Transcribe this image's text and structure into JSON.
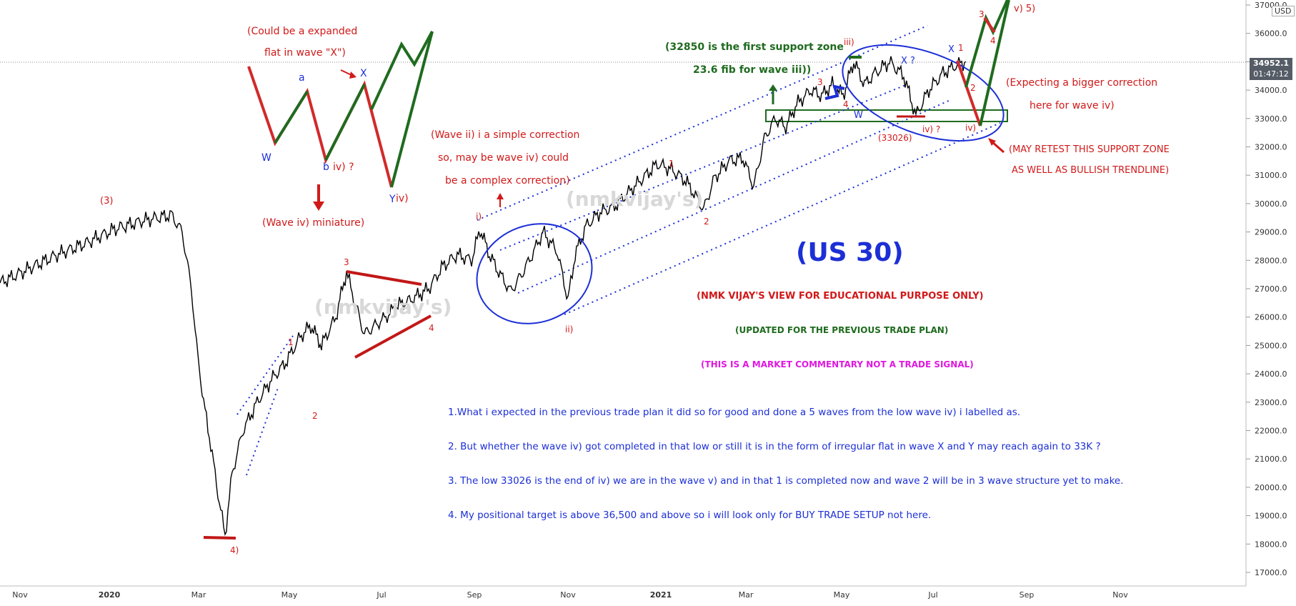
{
  "chart_data": {
    "type": "line",
    "title": "(US 30)",
    "currency": "USD",
    "last_price": "34952.1",
    "countdown": "01:47:12",
    "x_ticks": [
      "Nov",
      "2020",
      "Mar",
      "May",
      "Jul",
      "Sep",
      "Nov",
      "2021",
      "Mar",
      "May",
      "Jul",
      "Sep",
      "Nov"
    ],
    "y_ticks": [
      "37000.0",
      "36000.0",
      "35000.0",
      "34000.0",
      "33000.0",
      "32000.0",
      "31000.0",
      "30000.0",
      "29000.0",
      "28000.0",
      "27000.0",
      "26000.0",
      "25000.0",
      "24000.0",
      "23000.0",
      "22000.0",
      "21000.0",
      "20000.0",
      "19000.0",
      "18000.0",
      "17000.0"
    ],
    "ylim": [
      16500,
      37200
    ],
    "series": [
      {
        "values": [
          [
            0,
            27200
          ],
          [
            40,
            27700
          ],
          [
            80,
            28200
          ],
          [
            120,
            28600
          ],
          [
            160,
            29100
          ],
          [
            200,
            29400
          ],
          [
            220,
            29500
          ],
          [
            240,
            29600
          ],
          [
            255,
            29000
          ],
          [
            268,
            27000
          ],
          [
            275,
            25000
          ],
          [
            285,
            23000
          ],
          [
            295,
            21500
          ],
          [
            305,
            19800
          ],
          [
            315,
            18300
          ],
          [
            325,
            20500
          ],
          [
            340,
            22000
          ],
          [
            360,
            23000
          ],
          [
            380,
            23800
          ],
          [
            400,
            24400
          ],
          [
            420,
            25300
          ],
          [
            435,
            25700
          ],
          [
            450,
            25000
          ],
          [
            470,
            26000
          ],
          [
            485,
            27600
          ],
          [
            497,
            26500
          ],
          [
            510,
            25400
          ],
          [
            525,
            25700
          ],
          [
            540,
            26000
          ],
          [
            555,
            26400
          ],
          [
            575,
            26600
          ],
          [
            600,
            27000
          ],
          [
            620,
            27800
          ],
          [
            640,
            28200
          ],
          [
            660,
            28000
          ],
          [
            672,
            29100
          ],
          [
            685,
            28200
          ],
          [
            700,
            27500
          ],
          [
            715,
            26900
          ],
          [
            730,
            27500
          ],
          [
            745,
            28200
          ],
          [
            760,
            29000
          ],
          [
            780,
            28300
          ],
          [
            795,
            26600
          ],
          [
            805,
            28200
          ],
          [
            820,
            29200
          ],
          [
            840,
            29700
          ],
          [
            860,
            29900
          ],
          [
            880,
            30400
          ],
          [
            900,
            30900
          ],
          [
            920,
            31400
          ],
          [
            940,
            31200
          ],
          [
            960,
            30800
          ],
          [
            985,
            29800
          ],
          [
            1000,
            30900
          ],
          [
            1020,
            31500
          ],
          [
            1040,
            31600
          ],
          [
            1055,
            30600
          ],
          [
            1070,
            32300
          ],
          [
            1085,
            33000
          ],
          [
            1100,
            32700
          ],
          [
            1115,
            33500
          ],
          [
            1135,
            34000
          ],
          [
            1150,
            33800
          ],
          [
            1165,
            34200
          ],
          [
            1180,
            33800
          ],
          [
            1195,
            35000
          ],
          [
            1210,
            34200
          ],
          [
            1225,
            34600
          ],
          [
            1245,
            35000
          ],
          [
            1265,
            34500
          ],
          [
            1282,
            33100
          ],
          [
            1300,
            34000
          ],
          [
            1320,
            34600
          ],
          [
            1340,
            34900
          ],
          [
            1352,
            35000
          ]
        ]
      }
    ]
  },
  "annotations": {
    "flat_line1": "(Could be a expanded",
    "flat_line2": "flat in wave \"X\")",
    "wave_a": "a",
    "wave_x": "X",
    "wave_w": "W",
    "wave_b": "b",
    "wave_b_iv": "iv) ?",
    "wave_y": "Y",
    "wave_y_iv": "iv)",
    "miniature": "(Wave iv) miniature)",
    "wave_3_big": "(3)",
    "wave_ii_line1": "(Wave ii) i a simple correction",
    "wave_ii_line2": "so, may be wave iv) could",
    "wave_ii_line3": "be a complex correction)",
    "support_line1": "(32850 is the first support zone",
    "support_line2": "23.6 fib for wave iii))",
    "wave_iii": "iii)",
    "wave_x_q": "X ?",
    "wave_w2": "W",
    "wave_iv_q": "iv) ?",
    "low_33026": "(33026)",
    "wave_x_right": "X",
    "wave_1_right": "1",
    "wave_2_right": "2",
    "wave_3_right": "3",
    "wave_4_right": "4",
    "wave_v5": "v) 5)",
    "wave_iv_right": "iv)",
    "expect_line1": "(Expecting a bigger correction",
    "expect_line2": "here for wave iv)",
    "retest_line1": "(MAY RETEST THIS SUPPORT ZONE",
    "retest_line2": "AS WELL AS BULLISH TRENDLINE)",
    "us30": "(US 30)",
    "view": "(NMK VIJAY'S VIEW FOR EDUCATIONAL PURPOSE ONLY)",
    "updated": "(UPDATED FOR THE PREVIOUS TRADE PLAN)",
    "commentary": "(THIS IS A MARKET COMMENTARY NOT A TRADE SIGNAL)",
    "note1": "1.What i expected in the previous trade plan it did so for good and done a 5 waves from the low wave iv) i labelled as.",
    "note2": "2. But whether the wave iv) got completed in that low or still it is in the form of irregular flat in wave X and Y may reach again to 33K ?",
    "note3": "3. The low 33026 is the end of iv) we are in the wave v) and in that 1 is completed now and wave 2 will be in 3 wave structure yet to make.",
    "note4": "4. My positional target is above 36,500 and above so i will look only for BUY TRADE SETUP not here.",
    "wave_i": "i)",
    "wave_ii": "ii)",
    "wave_1a": "1",
    "wave_2a": "2",
    "wave_3a": "3",
    "wave_4a": "4",
    "wave_4big": "4)",
    "wave_1b": "1",
    "wave_2b": "2",
    "wave_3b": "3",
    "wave_4b": "4",
    "watermark1": "(nmkvijay's)",
    "watermark2": "(nmkvijay's)"
  },
  "colors": {
    "red": "#d11919",
    "green": "#1f6b1f",
    "blue": "#1c2fd6",
    "magenta": "#e018e0"
  }
}
